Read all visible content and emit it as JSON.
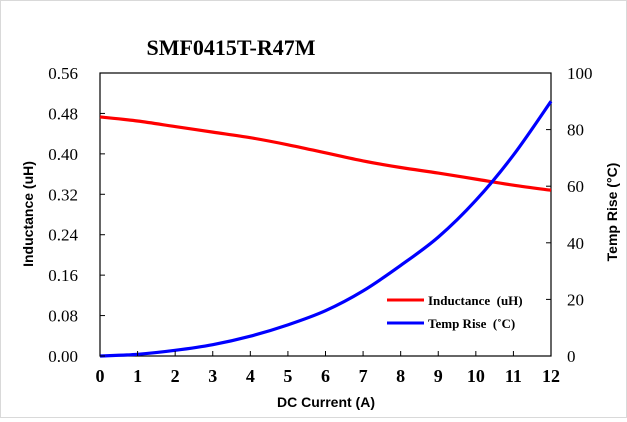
{
  "chart_data": {
    "type": "line",
    "title": "SMF0415T-R47M",
    "xlabel": "DC Current (A)",
    "ylabel_left": "Inductance (uH)",
    "ylabel_right": "Temp  Rise (°C)",
    "x_ticks": [
      "0",
      "1",
      "2",
      "3",
      "4",
      "5",
      "6",
      "7",
      "8",
      "9",
      "10",
      "11",
      "12"
    ],
    "y_left_ticks": [
      "0.00",
      "0.08",
      "0.16",
      "0.24",
      "0.32",
      "0.40",
      "0.48",
      "0.56"
    ],
    "y_right_ticks": [
      "0",
      "20",
      "40",
      "60",
      "80",
      "100"
    ],
    "xlim": [
      0,
      12
    ],
    "ylim_left": [
      0,
      0.56
    ],
    "ylim_right": [
      0,
      100
    ],
    "grid": false,
    "legend_position": "bottom-right",
    "series": [
      {
        "name": "Inductance  (uH)",
        "axis": "left",
        "color": "#ff0000",
        "x": [
          0,
          1,
          2,
          3,
          4,
          5,
          6,
          7,
          8,
          9,
          10,
          11,
          12
        ],
        "values": [
          0.473,
          0.465,
          0.454,
          0.443,
          0.432,
          0.418,
          0.402,
          0.386,
          0.373,
          0.362,
          0.35,
          0.338,
          0.328
        ]
      },
      {
        "name": "Temp Rise  (˚C)",
        "axis": "right",
        "color": "#0000ff",
        "x": [
          0,
          1,
          2,
          3,
          4,
          5,
          6,
          7,
          8,
          9,
          10,
          11,
          12
        ],
        "values": [
          0,
          0.6,
          2,
          4,
          7,
          11,
          16,
          23,
          32,
          42,
          55,
          71,
          90
        ]
      }
    ]
  }
}
